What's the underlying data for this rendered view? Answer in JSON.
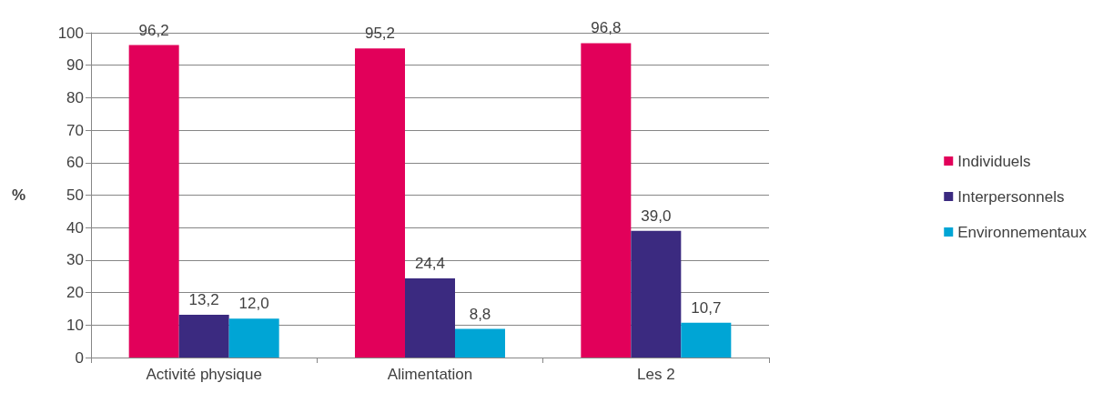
{
  "chart_data": {
    "type": "bar",
    "ylabel": "%",
    "categories": [
      "Activité physique",
      "Alimentation",
      "Les 2"
    ],
    "series": [
      {
        "name": "Individuels",
        "color": "#e2005a",
        "values": [
          96.2,
          95.2,
          96.8
        ],
        "value_labels": [
          "96,2",
          "95,2",
          "96,8"
        ]
      },
      {
        "name": "Interpersonnels",
        "color": "#3b2a80",
        "values": [
          13.2,
          24.4,
          39.0
        ],
        "value_labels": [
          "13,2",
          "24,4",
          "39,0"
        ]
      },
      {
        "name": "Environnementaux",
        "color": "#00a5d5",
        "values": [
          12.0,
          8.8,
          10.7
        ],
        "value_labels": [
          "12,0",
          "8,8",
          "10,7"
        ]
      }
    ],
    "ylim": [
      0,
      100
    ],
    "yticks": [
      0,
      10,
      20,
      30,
      40,
      50,
      60,
      70,
      80,
      90,
      100
    ],
    "grid": "y",
    "legend": "right"
  }
}
